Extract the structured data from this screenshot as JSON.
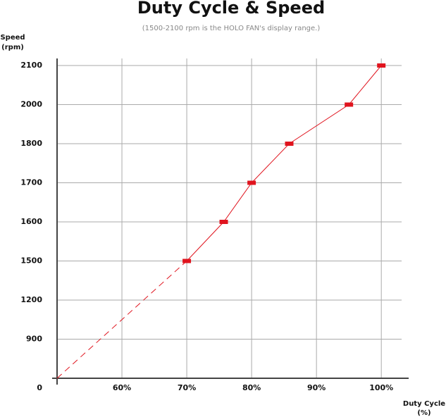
{
  "chart_data": {
    "type": "line",
    "title": "Duty Cycle & Speed",
    "subtitle": "(1500-2100 rpm is the HOLO FAN's display range.)",
    "y_label": [
      "Speed",
      "(rpm)"
    ],
    "x_label": [
      "Duty Cycle",
      "(%)"
    ],
    "x": [
      70,
      75.7,
      80,
      85.8,
      95,
      100
    ],
    "values": [
      1500,
      1600,
      1700,
      1800,
      2000,
      2100
    ],
    "color": "#e0141e",
    "extrapolation": {
      "x": [
        50,
        70
      ],
      "values": [
        0,
        1500
      ],
      "dashed": true
    },
    "xlim": [
      50,
      104
    ],
    "xticks": [
      {
        "value": 60,
        "label": "60%"
      },
      {
        "value": 70,
        "label": "70%"
      },
      {
        "value": 80,
        "label": "80%"
      },
      {
        "value": 90,
        "label": "90%"
      },
      {
        "value": 100,
        "label": "100%"
      }
    ],
    "ylim": [
      0,
      2100
    ],
    "yticks": [
      0,
      900,
      1200,
      1500,
      1600,
      1700,
      1800,
      2000,
      2100
    ],
    "y_scale": "piecewise",
    "grid": true
  }
}
